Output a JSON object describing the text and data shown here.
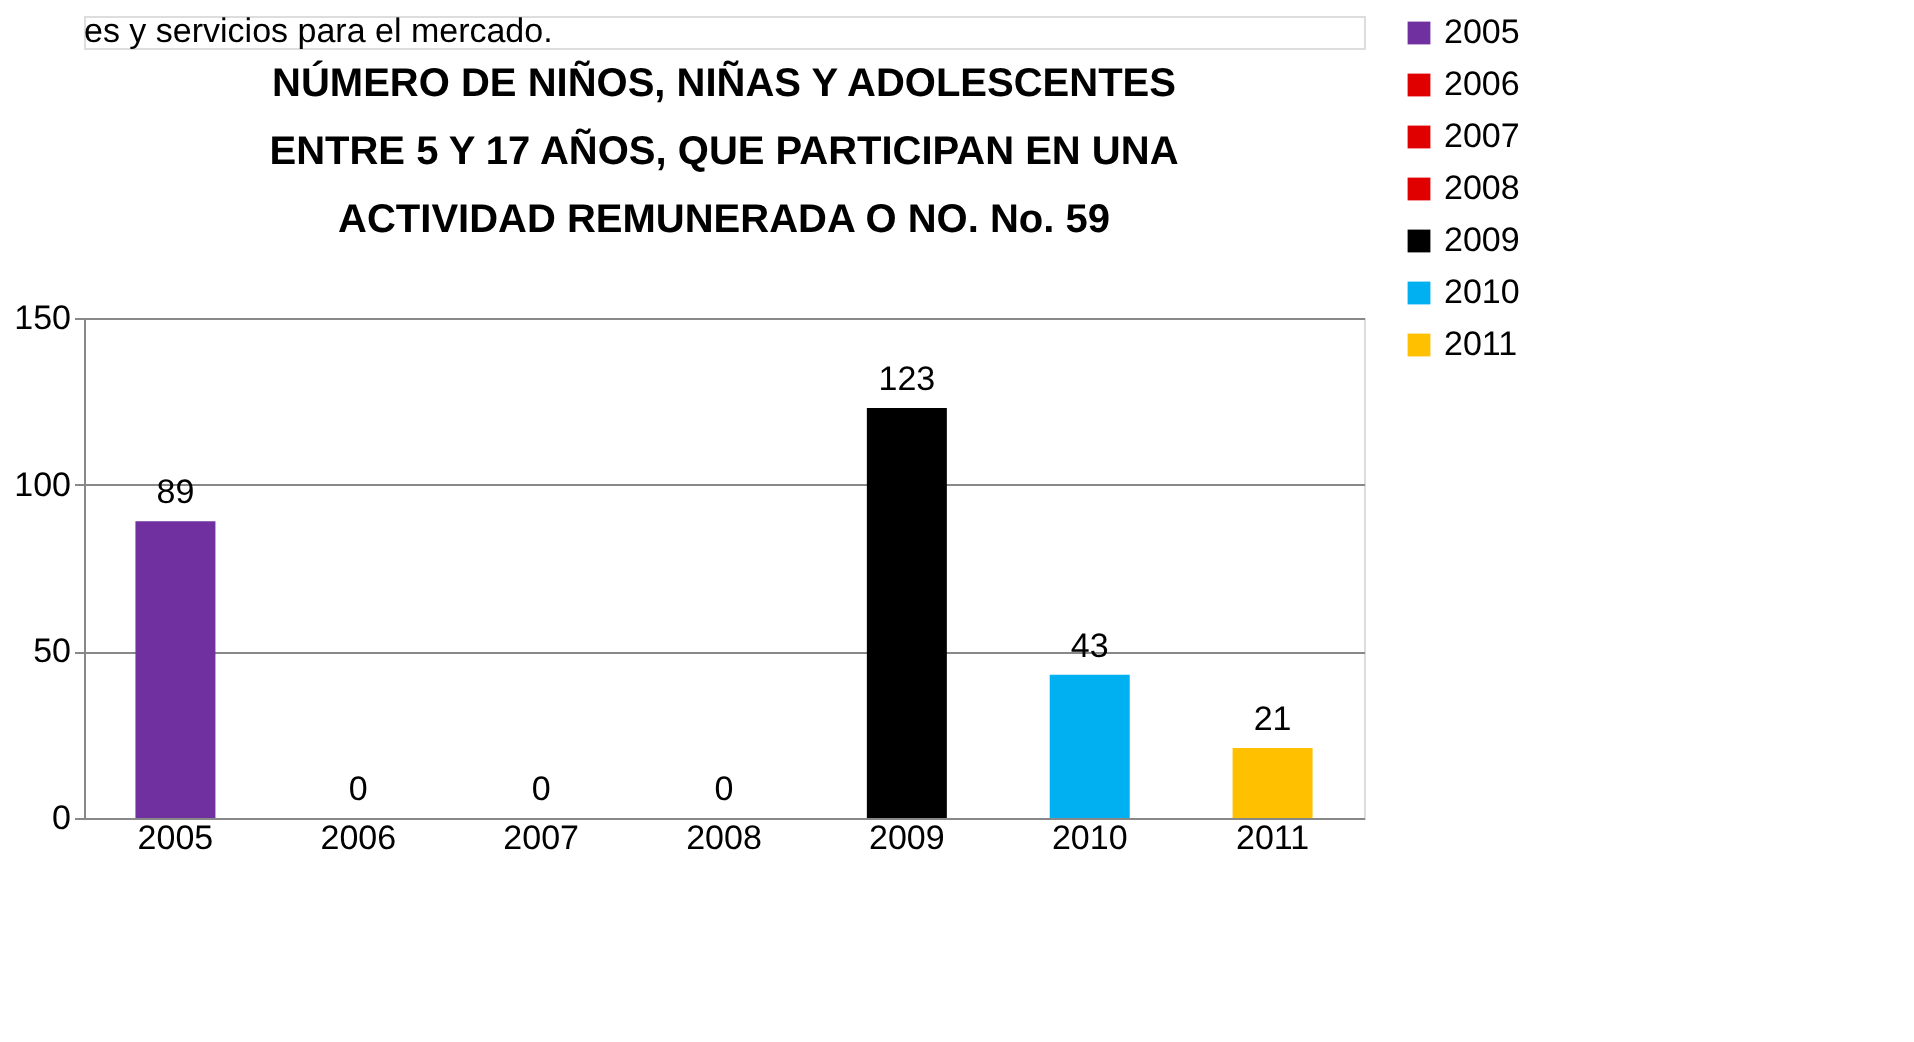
{
  "chart_data": {
    "type": "bar",
    "title": "NÚMERO DE NIÑOS, NIÑAS Y ADOLESCENTES ENTRE 5 Y  17 AÑOS, QUE PARTICIPAN EN UNA ACTIVIDAD REMUNERADA O NO. No. 59",
    "annotations": [
      "es y servicios para el mercado."
    ],
    "categories": [
      "2005",
      "2006",
      "2007",
      "2008",
      "2009",
      "2010",
      "2011"
    ],
    "series": [
      {
        "name": "2005",
        "color": "#7030a0",
        "values": [
          89,
          null,
          null,
          null,
          null,
          null,
          null
        ]
      },
      {
        "name": "2006",
        "color": "#e00000",
        "values": [
          null,
          0,
          null,
          null,
          null,
          null,
          null
        ]
      },
      {
        "name": "2007",
        "color": "#e00000",
        "values": [
          null,
          null,
          0,
          null,
          null,
          null,
          null
        ]
      },
      {
        "name": "2008",
        "color": "#e00000",
        "values": [
          null,
          null,
          null,
          0,
          null,
          null,
          null
        ]
      },
      {
        "name": "2009",
        "color": "#000000",
        "values": [
          null,
          null,
          null,
          null,
          123,
          null,
          null
        ]
      },
      {
        "name": "2010",
        "color": "#00b0f0",
        "values": [
          null,
          null,
          null,
          null,
          null,
          43,
          null
        ]
      },
      {
        "name": "2011",
        "color": "#ffc000",
        "values": [
          null,
          null,
          null,
          null,
          null,
          null,
          21
        ]
      }
    ],
    "ylim": [
      0,
      150
    ],
    "yticks": [
      0,
      50,
      100,
      150
    ],
    "grid": "y",
    "legend": "right",
    "data_labels": true
  }
}
